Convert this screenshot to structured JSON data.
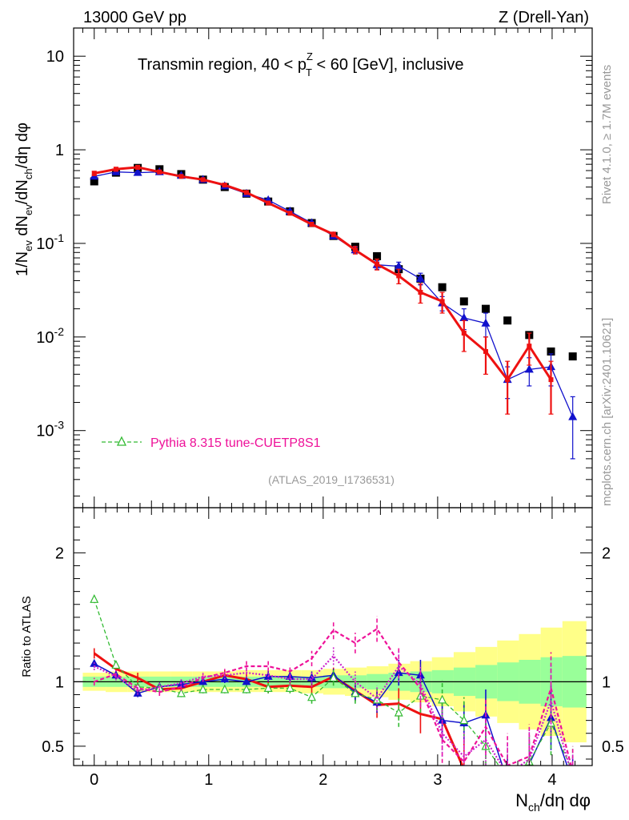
{
  "header": {
    "left": "13000 GeV pp",
    "right": "Z (Drell-Yan)"
  },
  "side_labels": {
    "rivet": "Rivet 4.1.0, ≥ 1.7M events",
    "mcplots": "mcplots.cern.ch [arXiv:2401.10621]"
  },
  "colors": {
    "data": "#000000",
    "red": "#ee1111",
    "blue": "#1111cc",
    "green": "#33bb33",
    "magenta": "#ee1199",
    "band_inner": "#99ff99",
    "band_outer": "#ffff88"
  },
  "chart_data": [
    {
      "type": "scatter",
      "panel": "main",
      "title": "Transmin region, 40 < p_T^Z < 60 [GeV], inclusive",
      "title_parts": {
        "pre": "Transmin region, 40 < p",
        "sup": "Z",
        "sub": "T",
        "post": " < 60 [GeV], inclusive"
      },
      "ylabel": "1/N_ev dN_ev/dN_ch/dη dφ",
      "ylabel_parts": {
        "a": "1/N",
        "a_sub": "ev",
        "b": " dN",
        "b_sub": "ev",
        "c": "/dN",
        "c_sub": "ch",
        "d": "/dη dφ"
      },
      "yscale": "log",
      "ylim": [
        0.00015,
        20
      ],
      "xlim": [
        -0.18,
        4.35
      ],
      "yticks": [
        {
          "v": 10,
          "m": "10",
          "e": ""
        },
        {
          "v": 1,
          "m": "1",
          "e": ""
        },
        {
          "v": 0.1,
          "m": "10",
          "e": "-1"
        },
        {
          "v": 0.01,
          "m": "10",
          "e": "-2"
        },
        {
          "v": 0.001,
          "m": "10",
          "e": "-3"
        }
      ],
      "legend": [
        {
          "label": "Pythia 8.315 tune-CUETP8S1",
          "color": "#ee1199",
          "line_color": "#33bb33",
          "marker": "open-triangle"
        }
      ],
      "watermark": "(ATLAS_2019_I1736531)",
      "series": [
        {
          "name": "ATLAS data",
          "color": "#000000",
          "marker": "square",
          "x": [
            0,
            0.19,
            0.38,
            0.57,
            0.76,
            0.95,
            1.14,
            1.33,
            1.52,
            1.71,
            1.9,
            2.09,
            2.28,
            2.47,
            2.66,
            2.85,
            3.04,
            3.23,
            3.42,
            3.61,
            3.8,
            3.99,
            4.18
          ],
          "y": [
            0.46,
            0.57,
            0.64,
            0.62,
            0.55,
            0.48,
            0.4,
            0.34,
            0.28,
            0.22,
            0.165,
            0.12,
            0.092,
            0.073,
            0.053,
            0.042,
            0.034,
            0.024,
            0.02,
            0.015,
            0.0105,
            0.007,
            0.0062
          ]
        },
        {
          "name": "Blue MC",
          "color": "#1111cc",
          "marker": "triangle",
          "x": [
            0,
            0.19,
            0.38,
            0.57,
            0.76,
            0.95,
            1.14,
            1.33,
            1.52,
            1.71,
            1.9,
            2.09,
            2.28,
            2.47,
            2.66,
            2.85,
            3.04,
            3.23,
            3.42,
            3.61,
            3.8,
            3.99,
            4.18
          ],
          "y": [
            0.52,
            0.58,
            0.57,
            0.58,
            0.53,
            0.48,
            0.41,
            0.34,
            0.29,
            0.22,
            0.165,
            0.12,
            0.085,
            0.059,
            0.057,
            0.042,
            0.023,
            0.016,
            0.014,
            0.0035,
            0.0045,
            0.0048,
            0.0014
          ],
          "err": [
            0.02,
            0.02,
            0.02,
            0.02,
            0.02,
            0.015,
            0.012,
            0.01,
            0.009,
            0.007,
            0.006,
            0.005,
            0.006,
            0.006,
            0.006,
            0.006,
            0.004,
            0.004,
            0.004,
            0.0013,
            0.0015,
            0.0018,
            0.0009
          ]
        },
        {
          "name": "Red MC",
          "color": "#ee1111",
          "marker": "square-small",
          "x": [
            0,
            0.19,
            0.38,
            0.57,
            0.76,
            0.95,
            1.14,
            1.33,
            1.52,
            1.71,
            1.9,
            2.09,
            2.28,
            2.47,
            2.66,
            2.85,
            3.04,
            3.23,
            3.42,
            3.61,
            3.8,
            3.99
          ],
          "y": [
            0.56,
            0.62,
            0.65,
            0.58,
            0.52,
            0.48,
            0.42,
            0.35,
            0.27,
            0.21,
            0.16,
            0.125,
            0.085,
            0.06,
            0.045,
            0.03,
            0.024,
            0.011,
            0.007,
            0.0035,
            0.008,
            0.0035
          ],
          "err": [
            0.03,
            0.03,
            0.03,
            0.025,
            0.02,
            0.015,
            0.012,
            0.01,
            0.01,
            0.009,
            0.008,
            0.007,
            0.008,
            0.008,
            0.008,
            0.007,
            0.006,
            0.004,
            0.003,
            0.002,
            0.003,
            0.002
          ]
        }
      ]
    },
    {
      "type": "line",
      "panel": "ratio",
      "ylabel": "Ratio to ATLAS",
      "xlabel": "N_ch/dη dφ",
      "xlabel_parts": {
        "a": "N",
        "a_sub": "ch",
        "b": "/dη dφ"
      },
      "ylim": [
        0.35,
        2.35
      ],
      "xlim": [
        -0.18,
        4.35
      ],
      "xticks": [
        0,
        1,
        2,
        3,
        4
      ],
      "xtick_labels": [
        "0",
        "1",
        "2",
        "3",
        "4"
      ],
      "yticks": [
        0.5,
        1,
        2
      ],
      "ytick_labels": [
        "0.5",
        "1",
        "2"
      ],
      "band": {
        "edges": [
          -0.1,
          0.1,
          0.29,
          0.48,
          0.67,
          0.86,
          1.05,
          1.24,
          1.43,
          1.62,
          1.81,
          2.0,
          2.19,
          2.38,
          2.57,
          2.76,
          2.95,
          3.14,
          3.33,
          3.52,
          3.71,
          3.9,
          4.09,
          4.3
        ],
        "inner_lo": [
          0.96,
          0.96,
          0.96,
          0.96,
          0.96,
          0.96,
          0.96,
          0.96,
          0.96,
          0.96,
          0.96,
          0.95,
          0.95,
          0.94,
          0.93,
          0.92,
          0.91,
          0.89,
          0.87,
          0.85,
          0.83,
          0.81,
          0.8
        ],
        "inner_hi": [
          1.04,
          1.04,
          1.04,
          1.04,
          1.04,
          1.04,
          1.04,
          1.04,
          1.04,
          1.04,
          1.04,
          1.05,
          1.05,
          1.06,
          1.07,
          1.08,
          1.09,
          1.11,
          1.13,
          1.15,
          1.17,
          1.19,
          1.2
        ],
        "outer_lo": [
          0.93,
          0.92,
          0.92,
          0.92,
          0.92,
          0.92,
          0.92,
          0.92,
          0.92,
          0.92,
          0.91,
          0.9,
          0.89,
          0.88,
          0.86,
          0.84,
          0.81,
          0.77,
          0.73,
          0.68,
          0.63,
          0.58,
          0.53
        ],
        "outer_hi": [
          1.07,
          1.08,
          1.08,
          1.08,
          1.08,
          1.08,
          1.08,
          1.09,
          1.09,
          1.09,
          1.09,
          1.1,
          1.11,
          1.12,
          1.14,
          1.16,
          1.19,
          1.23,
          1.27,
          1.32,
          1.37,
          1.42,
          1.47
        ]
      },
      "series": [
        {
          "name": "Red MC / ATLAS",
          "color": "#ee1111",
          "style": "solid",
          "width": 3,
          "marker": "none",
          "x": [
            0,
            0.19,
            0.38,
            0.57,
            0.76,
            0.95,
            1.14,
            1.33,
            1.52,
            1.71,
            1.9,
            2.09,
            2.28,
            2.47,
            2.66,
            2.85,
            3.04,
            3.23
          ],
          "y": [
            1.22,
            1.1,
            1.03,
            0.94,
            0.95,
            1.0,
            1.05,
            1.02,
            0.96,
            0.97,
            0.96,
            1.04,
            0.93,
            0.82,
            0.83,
            0.75,
            0.71,
            0.32
          ],
          "err": [
            0.04,
            0.03,
            0.04,
            0.04,
            0.04,
            0.04,
            0.04,
            0.05,
            0.05,
            0.05,
            0.06,
            0.07,
            0.08,
            0.1,
            0.12,
            0.15,
            0.18,
            0.2
          ]
        },
        {
          "name": "Blue MC / ATLAS",
          "color": "#1111cc",
          "style": "solid",
          "width": 1.5,
          "marker": "triangle",
          "x": [
            0,
            0.19,
            0.38,
            0.57,
            0.76,
            0.95,
            1.14,
            1.33,
            1.52,
            1.71,
            1.9,
            2.09,
            2.28,
            2.47,
            2.66,
            2.85,
            3.04,
            3.23,
            3.42,
            3.61,
            3.8,
            3.99,
            4.18
          ],
          "y": [
            1.14,
            1.05,
            0.91,
            0.96,
            0.98,
            1.0,
            1.02,
            1.0,
            1.04,
            1.04,
            1.03,
            1.05,
            0.92,
            0.84,
            1.07,
            1.05,
            0.7,
            0.68,
            0.74,
            0.23,
            0.36,
            0.72,
            0.22
          ],
          "err": [
            0.03,
            0.03,
            0.03,
            0.03,
            0.03,
            0.03,
            0.03,
            0.04,
            0.04,
            0.04,
            0.05,
            0.05,
            0.07,
            0.08,
            0.1,
            0.12,
            0.14,
            0.16,
            0.2,
            0.2,
            0.2,
            0.25,
            0.2
          ]
        },
        {
          "name": "Green MC / ATLAS",
          "color": "#33bb33",
          "style": "dashed",
          "width": 1.3,
          "marker": "open-triangle",
          "x": [
            0,
            0.19,
            0.38,
            0.57,
            0.76,
            0.95,
            1.14,
            1.33,
            1.52,
            1.71,
            1.9,
            2.09,
            2.28,
            2.47,
            2.66,
            2.85,
            3.04,
            3.23,
            3.42,
            3.61,
            3.8,
            3.99,
            4.18
          ],
          "y": [
            1.64,
            1.13,
            0.96,
            0.95,
            0.91,
            0.94,
            0.94,
            0.94,
            0.95,
            0.95,
            0.88,
            1.03,
            0.91,
            0.86,
            0.76,
            0.89,
            0.86,
            0.7,
            0.5,
            0.25,
            0.38,
            0.68,
            0.3
          ],
          "err": [
            0.03,
            0.03,
            0.03,
            0.03,
            0.03,
            0.03,
            0.03,
            0.03,
            0.04,
            0.04,
            0.05,
            0.06,
            0.08,
            0.09,
            0.11,
            0.13,
            0.15,
            0.18,
            0.2,
            0.2,
            0.22,
            0.25,
            0.2
          ]
        },
        {
          "name": "Magenta MC A / ATLAS",
          "color": "#ee1199",
          "style": "dashed",
          "width": 2.2,
          "marker": "none",
          "x": [
            0,
            0.19,
            0.38,
            0.57,
            0.76,
            0.95,
            1.14,
            1.33,
            1.52,
            1.71,
            1.9,
            2.09,
            2.28,
            2.47,
            2.66,
            2.85,
            3.04,
            3.23,
            3.42,
            3.61,
            3.8,
            3.99,
            4.18
          ],
          "y": [
            1.0,
            1.06,
            0.95,
            0.92,
            0.96,
            1.03,
            1.07,
            1.12,
            1.12,
            1.08,
            1.18,
            1.4,
            1.3,
            1.41,
            1.15,
            0.95,
            0.55,
            0.38,
            0.65,
            0.35,
            0.42,
            0.95,
            0.3
          ],
          "err": [
            0.03,
            0.03,
            0.03,
            0.03,
            0.03,
            0.03,
            0.03,
            0.04,
            0.04,
            0.05,
            0.06,
            0.07,
            0.08,
            0.1,
            0.12,
            0.15,
            0.18,
            0.2,
            0.22,
            0.25,
            0.25,
            0.28,
            0.2
          ]
        },
        {
          "name": "Magenta MC B / ATLAS",
          "color": "#cc22cc",
          "style": "dotted",
          "width": 2.2,
          "marker": "none",
          "x": [
            0,
            0.19,
            0.38,
            0.57,
            0.76,
            0.95,
            1.14,
            1.33,
            1.52,
            1.71,
            1.9,
            2.09,
            2.28,
            2.47,
            2.66,
            2.85,
            3.04,
            3.23,
            3.42,
            3.61,
            3.8,
            3.99,
            4.18
          ],
          "y": [
            1.12,
            1.04,
            0.93,
            0.96,
            0.99,
            1.04,
            1.05,
            1.07,
            1.05,
            1.02,
            1.02,
            1.2,
            1.0,
            0.87,
            1.12,
            0.98,
            0.6,
            0.42,
            0.55,
            0.28,
            0.4,
            0.85,
            0.25
          ],
          "err": [
            0.03,
            0.03,
            0.03,
            0.03,
            0.03,
            0.03,
            0.03,
            0.04,
            0.04,
            0.05,
            0.06,
            0.07,
            0.08,
            0.1,
            0.12,
            0.15,
            0.18,
            0.2,
            0.22,
            0.25,
            0.25,
            0.28,
            0.2
          ]
        }
      ]
    }
  ]
}
